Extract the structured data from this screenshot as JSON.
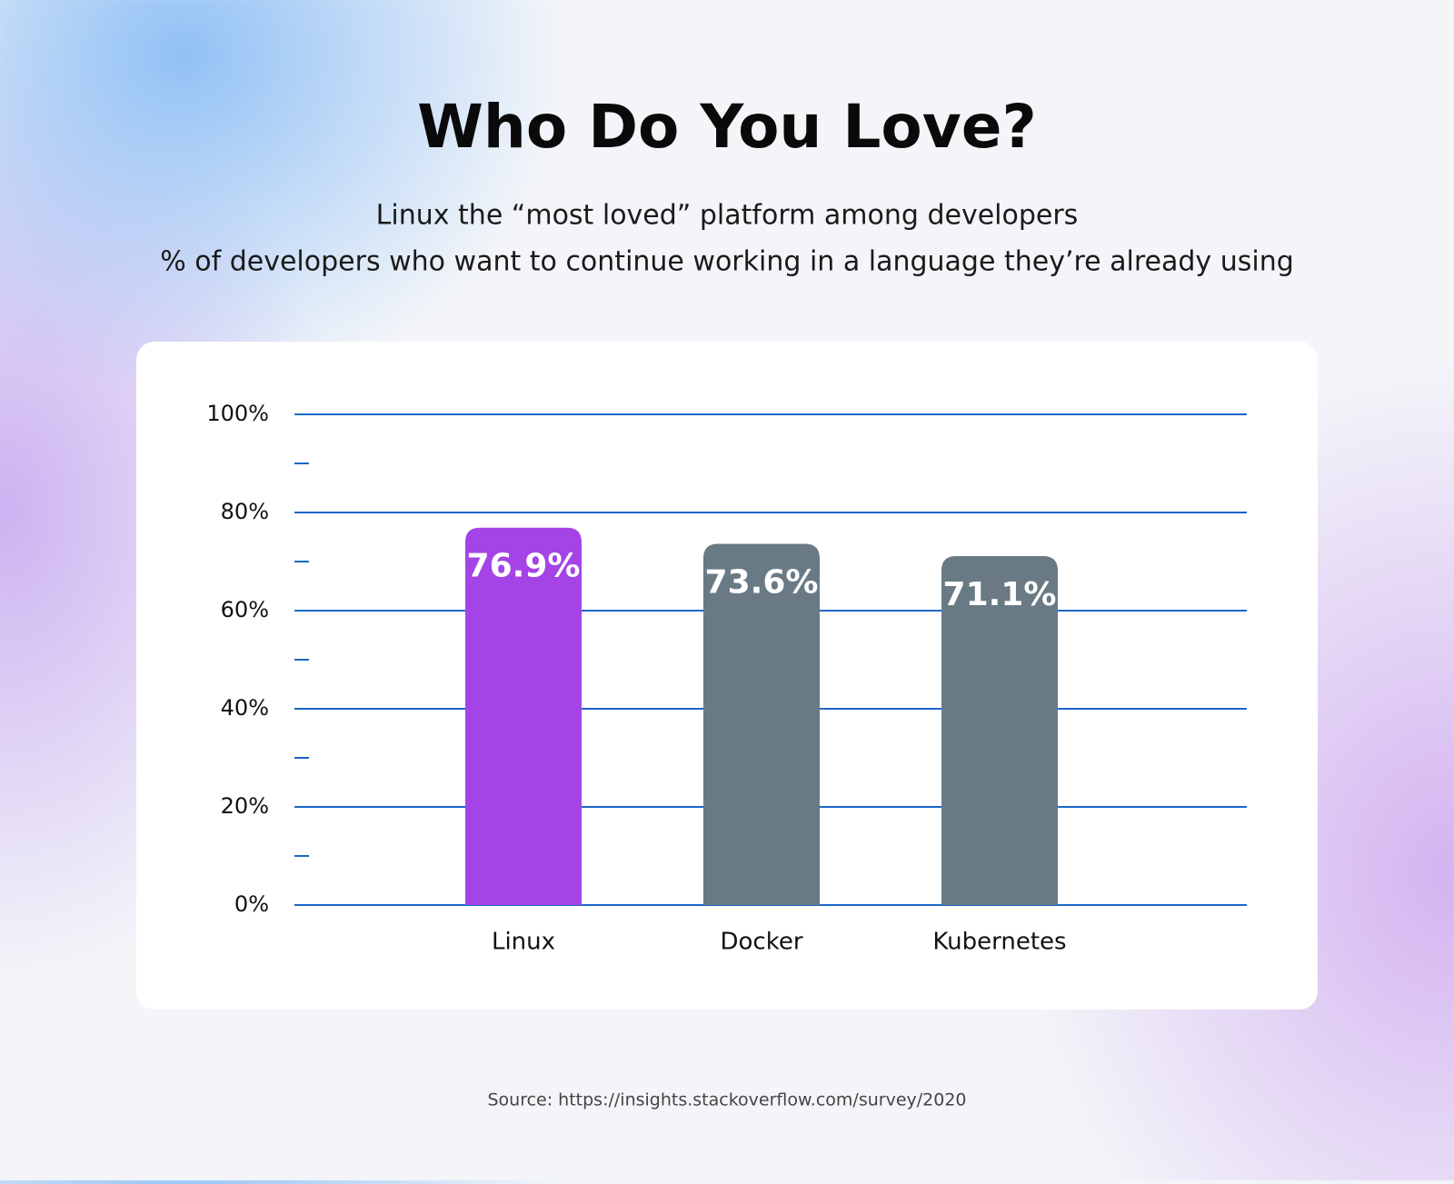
{
  "chart_data": {
    "type": "bar",
    "title": "Who Do You Love?",
    "subtitle": [
      "Linux the “most loved” platform among developers",
      "% of developers who want to continue working in a language they’re already using"
    ],
    "categories": [
      "Linux",
      "Docker",
      "Kubernetes"
    ],
    "values": [
      76.9,
      73.6,
      71.1
    ],
    "value_labels": [
      "76.9%",
      "73.6%",
      "71.1%"
    ],
    "colors": [
      "#a444e6",
      "#697a84",
      "#697a84"
    ],
    "ylim": [
      0,
      100
    ],
    "yticks": [
      {
        "value": 0,
        "label": "0%"
      },
      {
        "value": 20,
        "label": "20%"
      },
      {
        "value": 40,
        "label": "40%"
      },
      {
        "value": 60,
        "label": "60%"
      },
      {
        "value": 80,
        "label": "80%"
      },
      {
        "value": 100,
        "label": "100%"
      }
    ],
    "minor_yticks": [
      10,
      30,
      50,
      70,
      90
    ],
    "grid": true,
    "source": "Source: https://insights.stackoverflow.com/survey/2020"
  }
}
